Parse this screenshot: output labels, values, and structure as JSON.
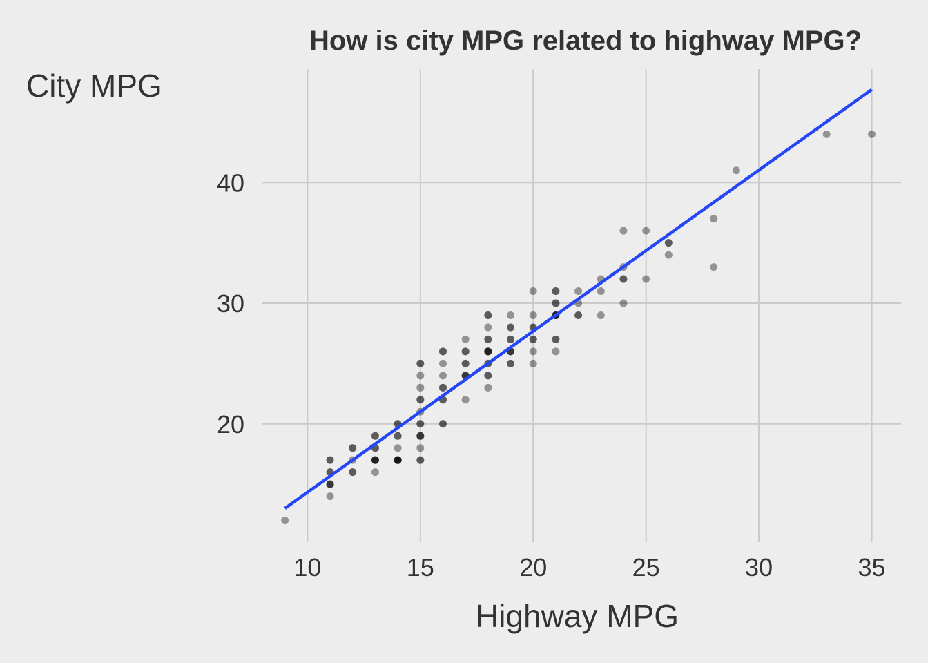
{
  "chart_data": {
    "type": "scatter",
    "title": "How is city MPG related to highway MPG?",
    "xlabel": "Highway MPG",
    "ylabel": "City MPG",
    "xlim": [
      8,
      36.3
    ],
    "ylim": [
      10.2,
      49.4
    ],
    "xticks": [
      10,
      15,
      20,
      25,
      30,
      35
    ],
    "yticks": [
      20,
      30,
      40
    ],
    "grid": true,
    "legend": "none",
    "point_color": "#000000",
    "line_color": "#2446f5",
    "points": [
      [
        9,
        12
      ],
      [
        11,
        14
      ],
      [
        11,
        15
      ],
      [
        11,
        15
      ],
      [
        11,
        15
      ],
      [
        11,
        16
      ],
      [
        11,
        16
      ],
      [
        11,
        17
      ],
      [
        11,
        17
      ],
      [
        12,
        16
      ],
      [
        12,
        16
      ],
      [
        12,
        17
      ],
      [
        12,
        18
      ],
      [
        12,
        18
      ],
      [
        13,
        16
      ],
      [
        13,
        17
      ],
      [
        13,
        17
      ],
      [
        13,
        17
      ],
      [
        13,
        17
      ],
      [
        13,
        18
      ],
      [
        13,
        18
      ],
      [
        13,
        19
      ],
      [
        13,
        19
      ],
      [
        14,
        17
      ],
      [
        14,
        17
      ],
      [
        14,
        17
      ],
      [
        14,
        17
      ],
      [
        14,
        17
      ],
      [
        14,
        18
      ],
      [
        14,
        19
      ],
      [
        14,
        19
      ],
      [
        14,
        20
      ],
      [
        14,
        20
      ],
      [
        15,
        17
      ],
      [
        15,
        17
      ],
      [
        15,
        18
      ],
      [
        15,
        19
      ],
      [
        15,
        19
      ],
      [
        15,
        19
      ],
      [
        15,
        20
      ],
      [
        15,
        20
      ],
      [
        15,
        21
      ],
      [
        15,
        22
      ],
      [
        15,
        22
      ],
      [
        15,
        23
      ],
      [
        15,
        24
      ],
      [
        15,
        25
      ],
      [
        15,
        25
      ],
      [
        16,
        20
      ],
      [
        16,
        20
      ],
      [
        16,
        22
      ],
      [
        16,
        22
      ],
      [
        16,
        23
      ],
      [
        16,
        23
      ],
      [
        16,
        24
      ],
      [
        16,
        25
      ],
      [
        16,
        26
      ],
      [
        16,
        26
      ],
      [
        17,
        22
      ],
      [
        17,
        24
      ],
      [
        17,
        24
      ],
      [
        17,
        24
      ],
      [
        17,
        25
      ],
      [
        17,
        25
      ],
      [
        17,
        26
      ],
      [
        17,
        26
      ],
      [
        17,
        27
      ],
      [
        18,
        23
      ],
      [
        18,
        24
      ],
      [
        18,
        24
      ],
      [
        18,
        25
      ],
      [
        18,
        25
      ],
      [
        18,
        26
      ],
      [
        18,
        26
      ],
      [
        18,
        26
      ],
      [
        18,
        26
      ],
      [
        18,
        27
      ],
      [
        18,
        27
      ],
      [
        18,
        28
      ],
      [
        18,
        29
      ],
      [
        18,
        29
      ],
      [
        19,
        25
      ],
      [
        19,
        25
      ],
      [
        19,
        26
      ],
      [
        19,
        26
      ],
      [
        19,
        26
      ],
      [
        19,
        27
      ],
      [
        19,
        27
      ],
      [
        19,
        28
      ],
      [
        19,
        28
      ],
      [
        19,
        29
      ],
      [
        20,
        25
      ],
      [
        20,
        26
      ],
      [
        20,
        27
      ],
      [
        20,
        27
      ],
      [
        20,
        28
      ],
      [
        20,
        28
      ],
      [
        20,
        29
      ],
      [
        20,
        31
      ],
      [
        21,
        26
      ],
      [
        21,
        27
      ],
      [
        21,
        27
      ],
      [
        21,
        29
      ],
      [
        21,
        29
      ],
      [
        21,
        29
      ],
      [
        21,
        29
      ],
      [
        21,
        30
      ],
      [
        21,
        30
      ],
      [
        21,
        31
      ],
      [
        21,
        31
      ],
      [
        22,
        29
      ],
      [
        22,
        29
      ],
      [
        22,
        30
      ],
      [
        22,
        31
      ],
      [
        23,
        29
      ],
      [
        23,
        31
      ],
      [
        23,
        32
      ],
      [
        24,
        30
      ],
      [
        24,
        32
      ],
      [
        24,
        32
      ],
      [
        24,
        33
      ],
      [
        24,
        36
      ],
      [
        25,
        32
      ],
      [
        25,
        36
      ],
      [
        26,
        34
      ],
      [
        26,
        35
      ],
      [
        26,
        35
      ],
      [
        28,
        33
      ],
      [
        28,
        37
      ],
      [
        29,
        41
      ],
      [
        33,
        44
      ],
      [
        35,
        44
      ]
    ],
    "fit_line": {
      "x": [
        9,
        35
      ],
      "y": [
        13.0,
        47.7
      ]
    }
  }
}
